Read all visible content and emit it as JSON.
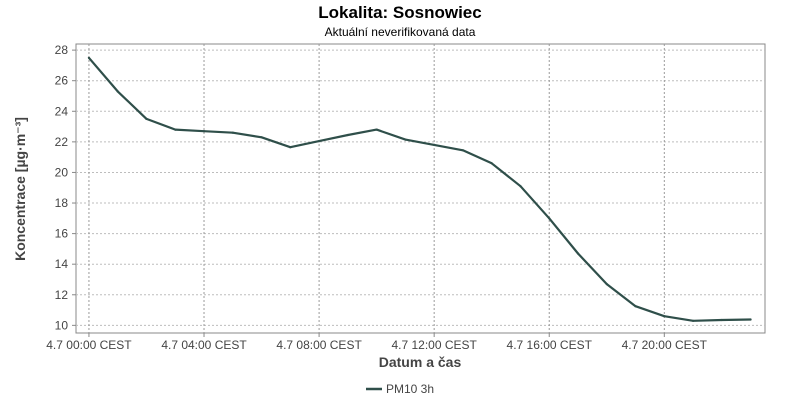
{
  "chart_data": {
    "type": "line",
    "title": "Lokalita: Sosnowiec",
    "subtitle": "Aktuální neverifikovaná data",
    "xlabel": "Datum a čas",
    "ylabel": "Koncentrace [µg·m⁻³]",
    "x_tick_labels": [
      "4.7 00:00 CEST",
      "4.7 04:00 CEST",
      "4.7 08:00 CEST",
      "4.7 12:00 CEST",
      "4.7 16:00 CEST",
      "4.7 20:00 CEST"
    ],
    "x_ticks_hours": [
      0,
      4,
      8,
      12,
      16,
      20
    ],
    "xlim_hours": [
      -0.45,
      23.5
    ],
    "ylim": [
      9.5,
      28.4
    ],
    "y_ticks": [
      10,
      12,
      14,
      16,
      18,
      20,
      22,
      24,
      26,
      28
    ],
    "grid": true,
    "legend_position": "bottom-center",
    "series": [
      {
        "name": "PM10 3h",
        "color": "#2f4f4a",
        "x_hours": [
          0,
          1,
          2,
          3,
          4,
          5,
          6,
          7,
          8,
          9,
          10,
          11,
          12,
          13,
          14,
          15,
          16,
          17,
          18,
          19,
          20,
          21,
          22,
          23
        ],
        "values": [
          27.5,
          25.3,
          23.5,
          22.8,
          22.7,
          22.6,
          22.3,
          21.65,
          22.05,
          22.45,
          22.8,
          22.15,
          21.8,
          21.45,
          20.6,
          19.1,
          17.0,
          14.7,
          12.7,
          11.25,
          10.6,
          10.3,
          10.35,
          10.38
        ]
      }
    ]
  }
}
